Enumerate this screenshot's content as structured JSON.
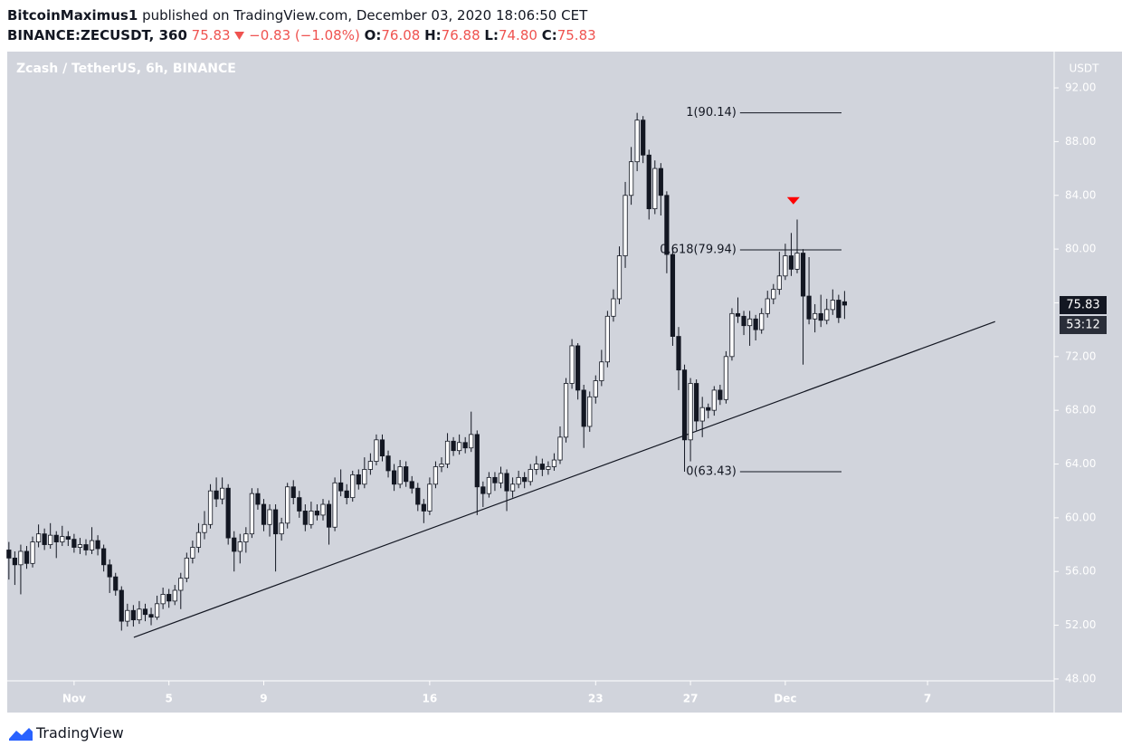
{
  "header": {
    "author": "BitcoinMaximus1",
    "published": "published on TradingView.com, December 03, 2020 18:06:50 CET",
    "symbol": "BINANCE:ZECUSDT, 360",
    "price": "75.83",
    "change": "−0.83 (−1.08%)",
    "o_label": "O:",
    "o": "76.08",
    "h_label": "H:",
    "h": "76.88",
    "l_label": "L:",
    "l": "74.80",
    "c_label": "C:",
    "c": "75.83"
  },
  "footer": {
    "brand": "TradingView"
  },
  "chart_data": {
    "type": "candlestick",
    "legend_title": "Zcash / TetherUS, 6h, BINANCE",
    "y_axis_label": "USDT",
    "countdown": "53:12",
    "up_color": "#ffffff",
    "down_color": "#131722",
    "line_color": "#131722",
    "background": "#d1d4dc",
    "xlim": [
      -1.82,
      42.34
    ],
    "ylim": [
      47.86,
      94.7
    ],
    "xticks": [
      {
        "value": 1,
        "label": "Nov"
      },
      5,
      9,
      16,
      23,
      27,
      {
        "value": 31,
        "label": "Dec"
      },
      {
        "value": 37,
        "label": "7"
      }
    ],
    "yticks": [
      {
        "value": 48,
        "label": "48.00"
      },
      {
        "value": 52,
        "label": "52.00"
      },
      {
        "value": 56,
        "label": "56.00"
      },
      {
        "value": 60,
        "label": "60.00"
      },
      {
        "value": 64,
        "label": "64.00"
      },
      {
        "value": 68,
        "label": "68.00"
      },
      {
        "value": 72,
        "label": "72.00"
      },
      {
        "value": 76,
        "label": "76.00"
      },
      {
        "value": 80,
        "label": "80.00"
      },
      {
        "value": 84,
        "label": "84.00"
      },
      {
        "value": 88,
        "label": "88.00"
      },
      {
        "value": 92,
        "label": "92.00"
      }
    ],
    "x": [
      -1.75,
      -1.5,
      -1.25,
      -1,
      -0.75,
      -0.5,
      -0.25,
      0,
      0.25,
      0.5,
      0.75,
      1,
      1.25,
      1.5,
      1.75,
      2,
      2.25,
      2.5,
      2.75,
      3,
      3.25,
      3.5,
      3.75,
      4,
      4.25,
      4.5,
      4.75,
      5,
      5.25,
      5.5,
      5.75,
      6,
      6.25,
      6.5,
      6.75,
      7,
      7.25,
      7.5,
      7.75,
      8,
      8.25,
      8.5,
      8.75,
      9,
      9.25,
      9.5,
      9.75,
      10,
      10.25,
      10.5,
      10.75,
      11,
      11.25,
      11.5,
      11.75,
      12,
      12.25,
      12.5,
      12.75,
      13,
      13.25,
      13.5,
      13.75,
      14,
      14.25,
      14.5,
      14.75,
      15,
      15.25,
      15.5,
      15.75,
      16,
      16.25,
      16.5,
      16.75,
      17,
      17.25,
      17.5,
      17.75,
      18,
      18.25,
      18.5,
      18.75,
      19,
      19.25,
      19.5,
      19.75,
      20,
      20.25,
      20.5,
      20.75,
      21,
      21.25,
      21.5,
      21.75,
      22,
      22.25,
      22.5,
      22.75,
      23,
      23.25,
      23.5,
      23.75,
      24,
      24.25,
      24.5,
      24.75,
      25,
      25.25,
      25.5,
      25.75,
      26,
      26.25,
      26.5,
      26.75,
      27,
      27.25,
      27.5,
      27.75,
      28,
      28.25,
      28.5,
      28.75,
      29,
      29.25,
      29.5,
      29.75,
      30,
      30.25,
      30.5,
      30.75,
      31,
      31.25,
      31.5,
      31.75,
      32,
      32.25,
      32.5,
      32.75,
      33,
      33.25,
      33.5
    ],
    "ohlc": [
      [
        57.6,
        58.2,
        55.4,
        57.0
      ],
      [
        57.0,
        57.5,
        55.0,
        56.5
      ],
      [
        56.5,
        58.0,
        54.3,
        57.5
      ],
      [
        57.5,
        57.9,
        56.2,
        56.6
      ],
      [
        56.6,
        58.6,
        56.3,
        58.2
      ],
      [
        58.2,
        59.5,
        57.8,
        58.8
      ],
      [
        58.8,
        59.2,
        57.6,
        58.0
      ],
      [
        58.0,
        59.6,
        57.7,
        58.7
      ],
      [
        58.7,
        59.0,
        57.0,
        58.2
      ],
      [
        58.2,
        59.4,
        57.9,
        58.6
      ],
      [
        58.6,
        59.0,
        57.9,
        58.4
      ],
      [
        58.4,
        58.8,
        57.4,
        57.8
      ],
      [
        57.8,
        58.5,
        57.3,
        58.0
      ],
      [
        58.0,
        58.4,
        57.2,
        57.6
      ],
      [
        57.6,
        59.3,
        57.3,
        58.3
      ],
      [
        58.3,
        58.7,
        57.2,
        57.7
      ],
      [
        57.7,
        58.0,
        56.0,
        56.5
      ],
      [
        56.5,
        56.9,
        54.4,
        55.6
      ],
      [
        55.6,
        55.9,
        54.2,
        54.6
      ],
      [
        54.6,
        54.9,
        51.6,
        52.3
      ],
      [
        52.3,
        53.6,
        51.9,
        53.1
      ],
      [
        53.1,
        53.5,
        51.9,
        52.4
      ],
      [
        52.4,
        53.8,
        52.1,
        53.2
      ],
      [
        53.2,
        53.6,
        52.3,
        52.8
      ],
      [
        52.8,
        53.3,
        52.0,
        52.6
      ],
      [
        52.6,
        54.2,
        52.4,
        53.6
      ],
      [
        53.6,
        54.8,
        53.2,
        54.3
      ],
      [
        54.3,
        54.7,
        53.3,
        53.8
      ],
      [
        53.8,
        55.0,
        53.5,
        54.6
      ],
      [
        54.6,
        55.9,
        53.2,
        55.5
      ],
      [
        55.5,
        57.4,
        55.2,
        57.0
      ],
      [
        57.0,
        58.3,
        56.6,
        57.8
      ],
      [
        57.8,
        59.6,
        57.4,
        58.9
      ],
      [
        58.9,
        60.5,
        58.4,
        59.5
      ],
      [
        59.5,
        62.5,
        59.2,
        62.0
      ],
      [
        62.0,
        63.0,
        60.8,
        61.4
      ],
      [
        61.4,
        63.0,
        61.0,
        62.2
      ],
      [
        62.2,
        62.5,
        58.0,
        58.5
      ],
      [
        58.5,
        59.0,
        56.0,
        57.5
      ],
      [
        57.5,
        58.8,
        56.6,
        58.2
      ],
      [
        58.2,
        59.3,
        57.4,
        58.8
      ],
      [
        58.8,
        62.2,
        58.5,
        61.8
      ],
      [
        61.8,
        62.2,
        60.6,
        61.0
      ],
      [
        61.0,
        61.4,
        59.0,
        59.5
      ],
      [
        59.5,
        61.0,
        58.6,
        60.6
      ],
      [
        60.6,
        61.0,
        56.0,
        58.8
      ],
      [
        58.8,
        60.0,
        58.3,
        59.6
      ],
      [
        59.6,
        62.6,
        59.2,
        62.3
      ],
      [
        62.3,
        62.8,
        61.0,
        61.5
      ],
      [
        61.5,
        62.0,
        60.0,
        60.5
      ],
      [
        60.5,
        61.0,
        59.0,
        59.5
      ],
      [
        59.5,
        61.2,
        59.2,
        60.5
      ],
      [
        60.5,
        61.0,
        59.8,
        60.2
      ],
      [
        60.2,
        61.4,
        59.8,
        61.0
      ],
      [
        61.0,
        61.3,
        58.0,
        59.3
      ],
      [
        59.3,
        63.0,
        59.0,
        62.6
      ],
      [
        62.6,
        63.6,
        61.6,
        62.0
      ],
      [
        62.0,
        62.5,
        61.0,
        61.5
      ],
      [
        61.5,
        63.5,
        61.2,
        63.2
      ],
      [
        63.2,
        63.6,
        62.1,
        62.5
      ],
      [
        62.5,
        64.5,
        62.2,
        63.6
      ],
      [
        63.6,
        64.8,
        63.2,
        64.2
      ],
      [
        64.2,
        66.2,
        63.9,
        65.8
      ],
      [
        65.8,
        66.2,
        64.2,
        64.6
      ],
      [
        64.6,
        65.0,
        63.0,
        63.5
      ],
      [
        63.5,
        64.0,
        62.0,
        62.5
      ],
      [
        62.5,
        64.3,
        62.2,
        63.8
      ],
      [
        63.8,
        64.2,
        62.3,
        62.7
      ],
      [
        62.7,
        63.1,
        61.8,
        62.2
      ],
      [
        62.2,
        62.6,
        60.5,
        61.0
      ],
      [
        61.0,
        61.4,
        59.6,
        60.5
      ],
      [
        60.5,
        63.0,
        60.2,
        62.5
      ],
      [
        62.5,
        64.2,
        62.2,
        63.8
      ],
      [
        63.8,
        64.5,
        63.4,
        64.0
      ],
      [
        64.0,
        66.3,
        63.7,
        65.7
      ],
      [
        65.7,
        66.0,
        64.6,
        65.0
      ],
      [
        65.0,
        66.2,
        64.7,
        65.6
      ],
      [
        65.6,
        66.0,
        64.8,
        65.2
      ],
      [
        65.2,
        67.9,
        64.9,
        66.2
      ],
      [
        66.2,
        66.5,
        60.2,
        62.3
      ],
      [
        62.3,
        62.7,
        60.8,
        61.8
      ],
      [
        61.8,
        63.4,
        61.5,
        63.0
      ],
      [
        63.0,
        63.4,
        62.0,
        62.6
      ],
      [
        62.6,
        63.8,
        62.2,
        63.3
      ],
      [
        63.3,
        63.6,
        60.5,
        62.0
      ],
      [
        62.0,
        63.0,
        61.5,
        62.5
      ],
      [
        62.5,
        63.5,
        62.2,
        63.0
      ],
      [
        63.0,
        63.4,
        62.2,
        62.7
      ],
      [
        62.7,
        64.0,
        62.4,
        63.6
      ],
      [
        63.6,
        64.6,
        63.2,
        64.0
      ],
      [
        64.0,
        64.4,
        63.1,
        63.6
      ],
      [
        63.6,
        64.2,
        63.2,
        63.8
      ],
      [
        63.8,
        64.8,
        63.5,
        64.3
      ],
      [
        64.3,
        66.8,
        64.0,
        66.0
      ],
      [
        66.0,
        70.4,
        65.6,
        70.0
      ],
      [
        70.0,
        73.3,
        69.6,
        72.8
      ],
      [
        72.8,
        73.0,
        68.8,
        69.5
      ],
      [
        69.5,
        69.9,
        65.2,
        66.8
      ],
      [
        66.8,
        69.4,
        66.4,
        69.0
      ],
      [
        69.0,
        70.6,
        68.5,
        70.2
      ],
      [
        70.2,
        72.5,
        69.8,
        71.6
      ],
      [
        71.6,
        75.4,
        71.2,
        75.0
      ],
      [
        75.0,
        77.0,
        74.6,
        76.3
      ],
      [
        76.3,
        80.2,
        75.9,
        79.5
      ],
      [
        79.5,
        85.0,
        78.6,
        84.0
      ],
      [
        84.0,
        87.6,
        83.3,
        86.5
      ],
      [
        86.5,
        90.14,
        85.8,
        89.6
      ],
      [
        89.6,
        89.9,
        86.4,
        87.0
      ],
      [
        87.0,
        87.4,
        82.2,
        83.0
      ],
      [
        83.0,
        86.6,
        82.6,
        86.0
      ],
      [
        86.0,
        86.4,
        82.5,
        84.0
      ],
      [
        84.0,
        84.3,
        78.2,
        79.6
      ],
      [
        79.6,
        80.0,
        72.8,
        73.5
      ],
      [
        73.5,
        74.2,
        69.5,
        71.0
      ],
      [
        71.0,
        71.4,
        63.43,
        65.8
      ],
      [
        65.8,
        70.4,
        64.2,
        70.0
      ],
      [
        70.0,
        70.3,
        66.5,
        67.2
      ],
      [
        67.2,
        69.0,
        66.0,
        68.2
      ],
      [
        68.2,
        68.5,
        67.4,
        68.0
      ],
      [
        68.0,
        69.8,
        67.6,
        69.5
      ],
      [
        69.5,
        69.9,
        68.4,
        68.8
      ],
      [
        68.8,
        72.4,
        68.5,
        72.0
      ],
      [
        72.0,
        75.6,
        71.7,
        75.2
      ],
      [
        75.2,
        76.4,
        74.5,
        75.0
      ],
      [
        75.0,
        75.4,
        73.6,
        74.3
      ],
      [
        74.3,
        75.4,
        72.8,
        74.8
      ],
      [
        74.8,
        75.1,
        73.2,
        74.0
      ],
      [
        74.0,
        75.6,
        73.7,
        75.2
      ],
      [
        75.2,
        76.9,
        74.9,
        76.3
      ],
      [
        76.3,
        77.4,
        75.9,
        77.0
      ],
      [
        77.0,
        79.8,
        76.6,
        78.0
      ],
      [
        78.0,
        80.4,
        77.7,
        79.5
      ],
      [
        79.5,
        81.2,
        78.0,
        78.5
      ],
      [
        78.5,
        82.2,
        78.2,
        79.7
      ],
      [
        79.7,
        80.0,
        71.4,
        76.5
      ],
      [
        76.5,
        79.4,
        74.4,
        74.8
      ],
      [
        74.8,
        75.9,
        73.8,
        75.2
      ],
      [
        75.2,
        76.6,
        74.2,
        74.7
      ],
      [
        74.7,
        76.3,
        74.4,
        75.5
      ],
      [
        75.5,
        77.0,
        75.1,
        76.2
      ],
      [
        76.2,
        76.6,
        74.5,
        74.9
      ],
      [
        76.08,
        76.88,
        74.8,
        75.83
      ]
    ],
    "fib": {
      "x": [
        29.09,
        33.37
      ],
      "levels": [
        {
          "value": 90.14,
          "label": "1(90.14)"
        },
        {
          "value": 79.94,
          "label": "0.618(79.94)"
        },
        {
          "value": 63.43,
          "label": "0(63.43)"
        }
      ]
    },
    "trendline": {
      "x": [
        3.52,
        39.85
      ],
      "y": [
        51.1,
        74.6
      ]
    },
    "marker": {
      "x": 31.34,
      "y": 83.6,
      "color": "#ff0000"
    }
  }
}
